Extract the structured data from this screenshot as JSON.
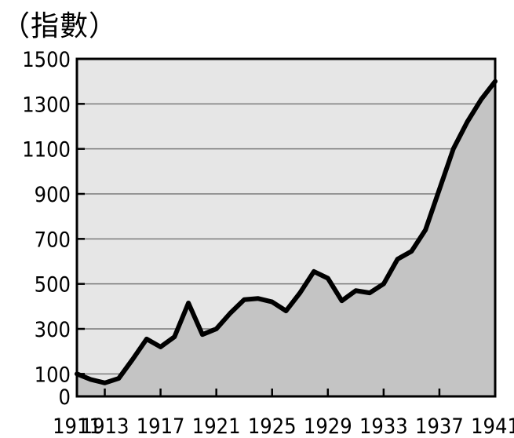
{
  "chart_data": {
    "type": "area",
    "unit_label": "（指數）",
    "title": "",
    "xlabel": "",
    "ylabel": "",
    "x": [
      1911,
      1912,
      1913,
      1914,
      1915,
      1916,
      1917,
      1918,
      1919,
      1920,
      1921,
      1922,
      1923,
      1924,
      1925,
      1926,
      1927,
      1928,
      1929,
      1930,
      1931,
      1932,
      1933,
      1934,
      1935,
      1936,
      1937,
      1938,
      1939,
      1939.5,
      1940,
      1941
    ],
    "values": [
      100,
      75,
      60,
      80,
      165,
      255,
      220,
      265,
      415,
      275,
      300,
      370,
      430,
      435,
      420,
      380,
      460,
      555,
      525,
      425,
      470,
      460,
      500,
      610,
      645,
      740,
      920,
      1100,
      1220,
      1270,
      1320,
      1400
    ],
    "xlim": [
      1911,
      1941
    ],
    "ylim": [
      0,
      1500
    ],
    "y_ticks": [
      0,
      100,
      300,
      500,
      700,
      900,
      1100,
      1300,
      1500
    ],
    "x_ticks": [
      1911,
      1913,
      1917,
      1921,
      1925,
      1929,
      1933,
      1937,
      1941
    ],
    "grid": true,
    "colors": {
      "plot_bg": "#e6e6e6",
      "fill": "#c4c4c4",
      "line": "#000000",
      "grid": "#7a7a7a"
    }
  }
}
